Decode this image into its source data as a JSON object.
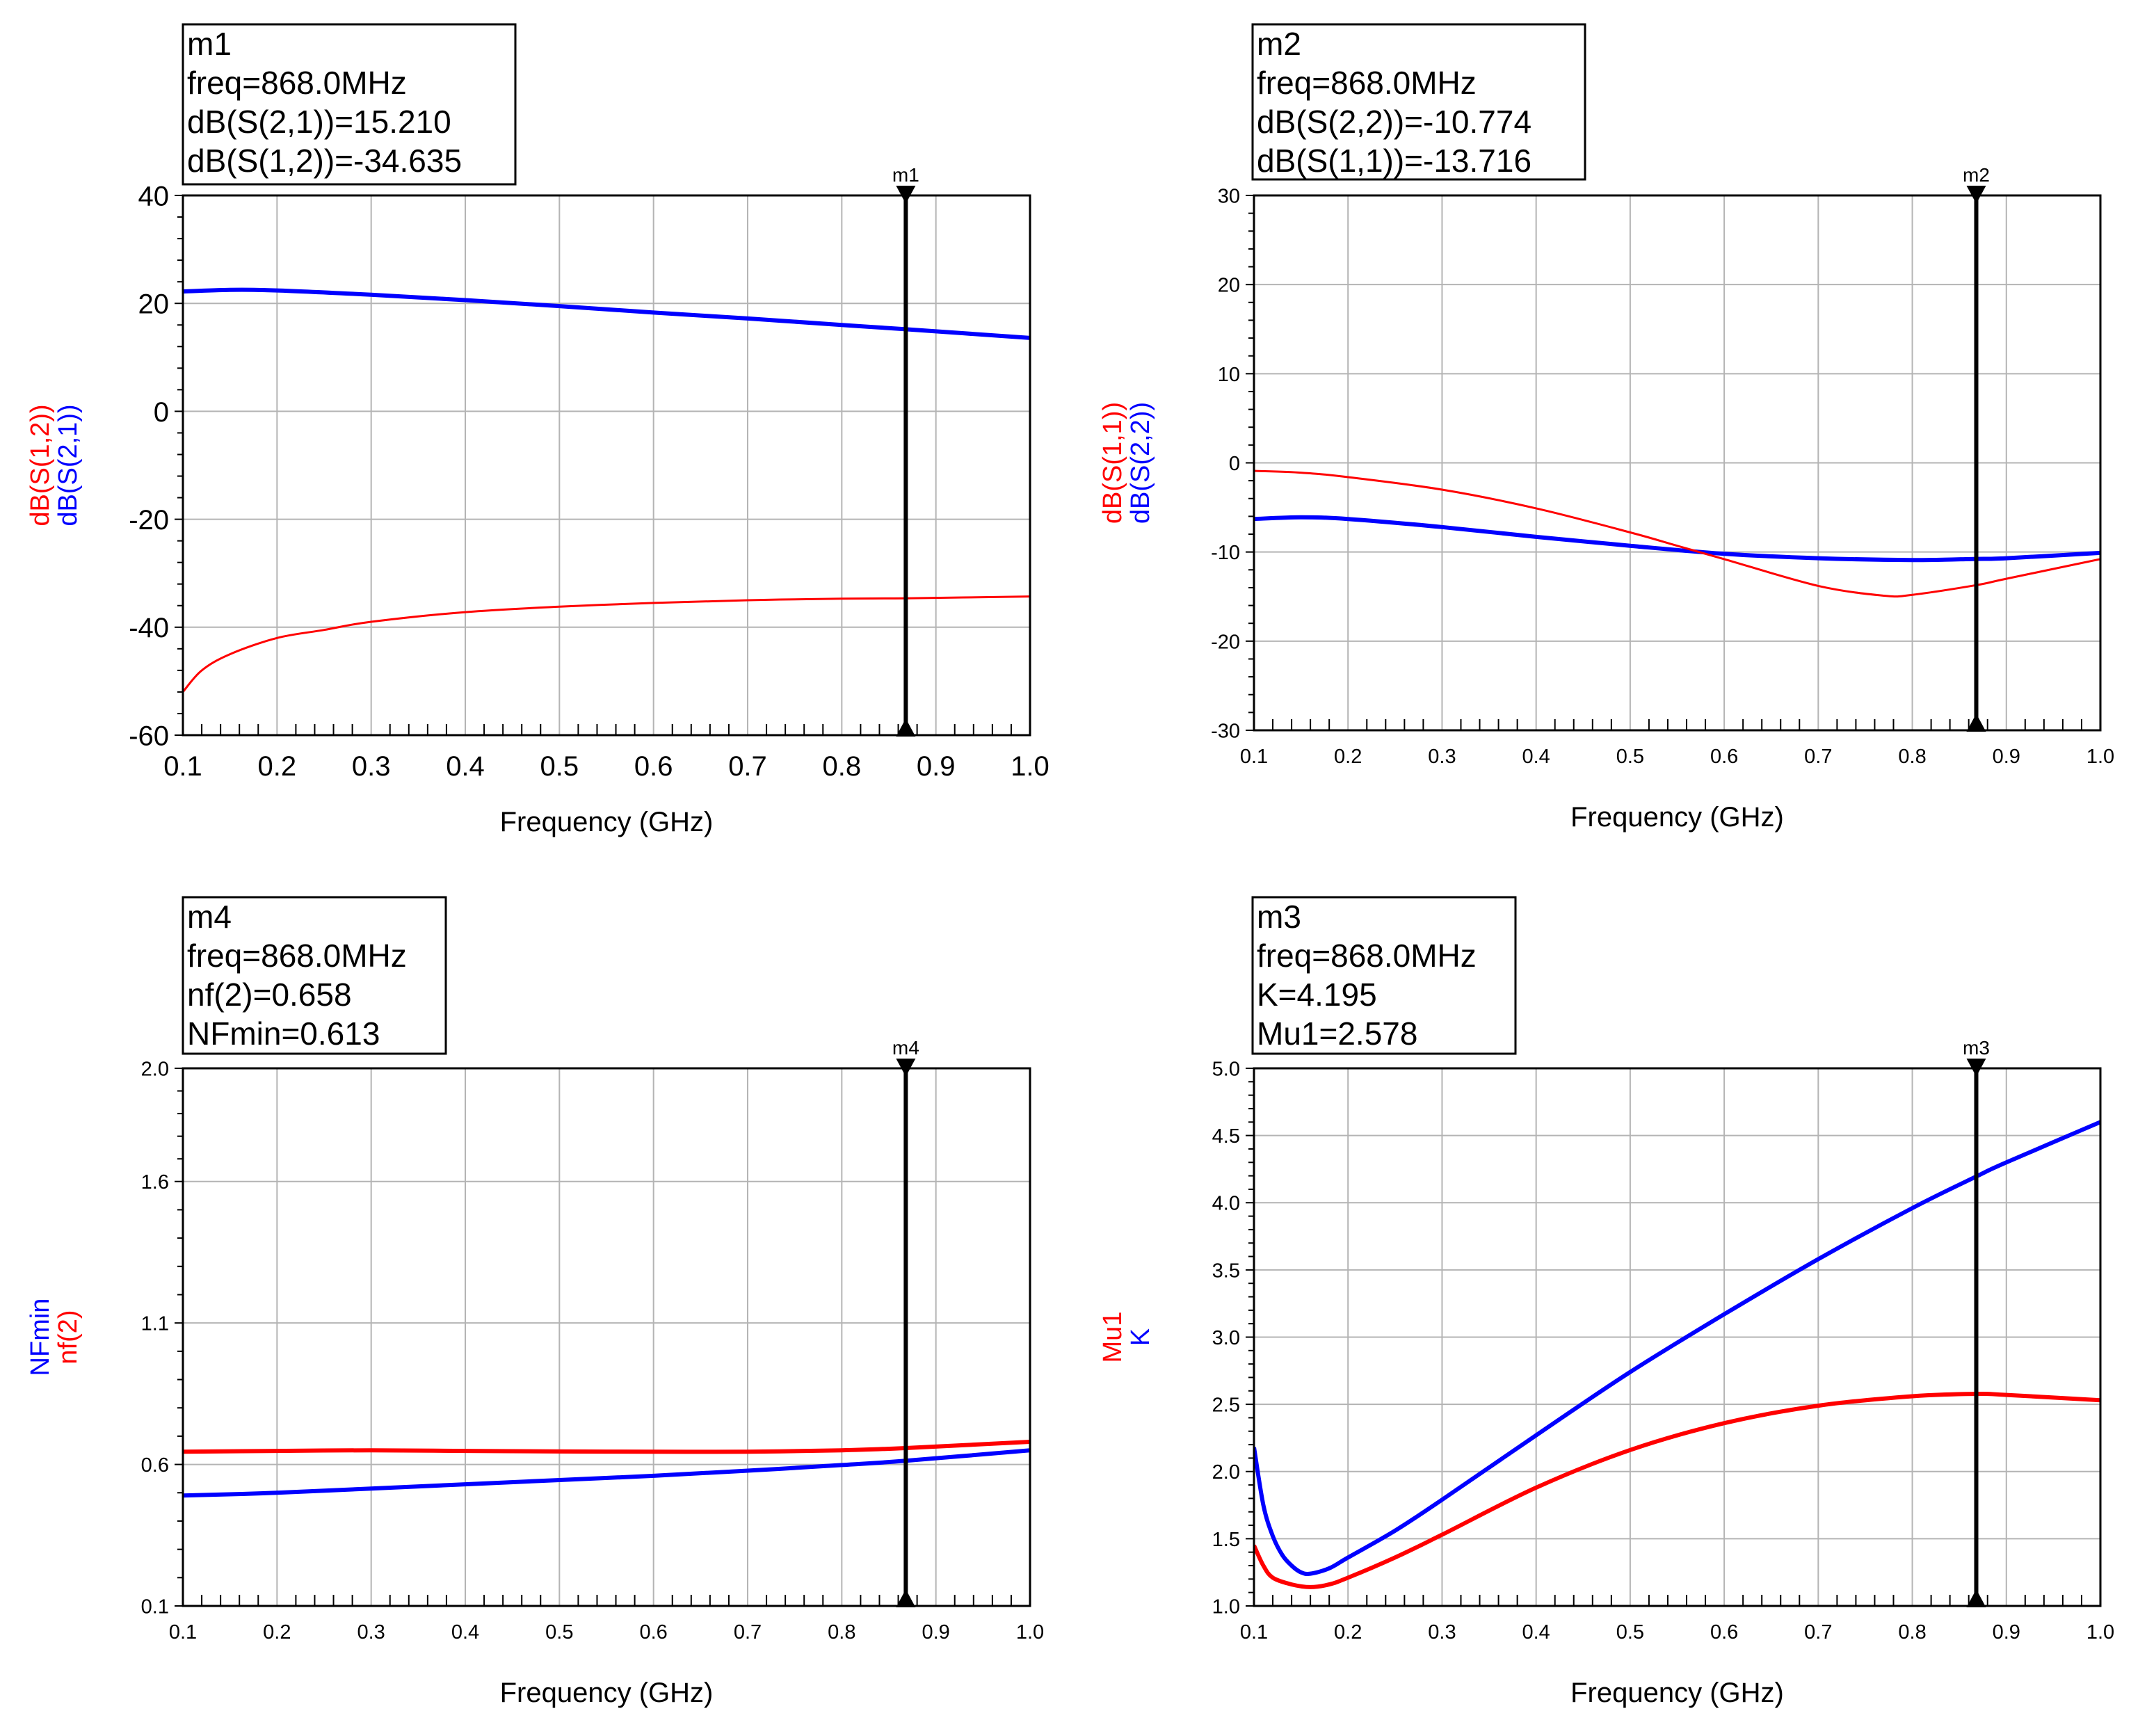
{
  "colors": {
    "red": "#ff0000",
    "blue": "#0000ff",
    "grid": "#b4b4b4",
    "black": "#000000"
  },
  "chart_data": [
    {
      "type": "line",
      "xlabel": "Frequency (GHz)",
      "ylabels": [
        {
          "text": "dB(S(1,2))",
          "color": "#ff0000"
        },
        {
          "text": "dB(S(2,1))",
          "color": "#0000ff"
        }
      ],
      "xlim": [
        0.1,
        1.0
      ],
      "ylim": [
        -60,
        40
      ],
      "xticks": [
        0.1,
        0.2,
        0.3,
        0.4,
        0.5,
        0.6,
        0.7,
        0.8,
        0.9,
        1.0
      ],
      "xtick_labels": [
        "0.1",
        "0.2",
        "0.3",
        "0.4",
        "0.5",
        "0.6",
        "0.7",
        "0.8",
        "0.9",
        "1.0"
      ],
      "yticks": [
        -60,
        -40,
        -20,
        0,
        20,
        40
      ],
      "ytick_labels": [
        "-60",
        "-40",
        "-20",
        "0",
        "20",
        "40"
      ],
      "marker": {
        "name": "m1",
        "x": 0.868,
        "lines": [
          "m1",
          "freq=868.0MHz",
          "dB(S(2,1))=15.210",
          "dB(S(1,2))=-34.635"
        ]
      },
      "series": [
        {
          "name": "dB(S(2,1))",
          "color": "#0000ff",
          "weight": "thick",
          "x": [
            0.1,
            0.15,
            0.2,
            0.3,
            0.4,
            0.5,
            0.6,
            0.7,
            0.8,
            0.868,
            1.0
          ],
          "y": [
            22.2,
            22.5,
            22.4,
            21.6,
            20.6,
            19.5,
            18.3,
            17.2,
            16.0,
            15.21,
            13.6
          ]
        },
        {
          "name": "dB(S(1,2))",
          "color": "#ff0000",
          "weight": "thin",
          "x": [
            0.1,
            0.12,
            0.15,
            0.2,
            0.25,
            0.3,
            0.4,
            0.5,
            0.6,
            0.7,
            0.8,
            0.868,
            1.0
          ],
          "y": [
            -52.0,
            -48.0,
            -45.0,
            -42.0,
            -40.5,
            -39.0,
            -37.2,
            -36.2,
            -35.5,
            -35.0,
            -34.7,
            -34.635,
            -34.3
          ]
        }
      ]
    },
    {
      "type": "line",
      "xlabel": "Frequency (GHz)",
      "ylabels": [
        {
          "text": "dB(S(1,1))",
          "color": "#ff0000"
        },
        {
          "text": "dB(S(2,2))",
          "color": "#0000ff"
        }
      ],
      "xlim": [
        0.1,
        1.0
      ],
      "ylim": [
        -30,
        30
      ],
      "xticks": [
        0.1,
        0.2,
        0.3,
        0.4,
        0.5,
        0.6,
        0.7,
        0.8,
        0.9,
        1.0
      ],
      "xtick_labels": [
        "0.1",
        "0.2",
        "0.3",
        "0.4",
        "0.5",
        "0.6",
        "0.7",
        "0.8",
        "0.9",
        "1.0"
      ],
      "yticks": [
        -30,
        -20,
        -10,
        0,
        10,
        20,
        30
      ],
      "ytick_labels": [
        "-30",
        "-20",
        "-10",
        "0",
        "10",
        "20",
        "30"
      ],
      "marker": {
        "name": "m2",
        "x": 0.868,
        "lines": [
          "m2",
          "freq=868.0MHz",
          "dB(S(2,2))=-10.774",
          "dB(S(1,1))=-13.716"
        ]
      },
      "series": [
        {
          "name": "dB(S(2,2))",
          "color": "#0000ff",
          "weight": "thick",
          "x": [
            0.1,
            0.15,
            0.2,
            0.3,
            0.4,
            0.5,
            0.6,
            0.7,
            0.8,
            0.868,
            0.9,
            1.0
          ],
          "y": [
            -6.3,
            -6.1,
            -6.3,
            -7.2,
            -8.3,
            -9.3,
            -10.2,
            -10.7,
            -10.9,
            -10.774,
            -10.7,
            -10.1
          ]
        },
        {
          "name": "dB(S(1,1))",
          "color": "#ff0000",
          "weight": "thin",
          "x": [
            0.1,
            0.15,
            0.2,
            0.3,
            0.4,
            0.5,
            0.55,
            0.6,
            0.7,
            0.77,
            0.8,
            0.868,
            0.9,
            1.0
          ],
          "y": [
            -0.9,
            -1.1,
            -1.6,
            -3.0,
            -5.1,
            -7.8,
            -9.3,
            -10.8,
            -13.8,
            -14.9,
            -14.8,
            -13.716,
            -13.0,
            -10.8
          ]
        }
      ]
    },
    {
      "type": "line",
      "xlabel": "Frequency (GHz)",
      "ylabels": [
        {
          "text": "NFmin",
          "color": "#0000ff"
        },
        {
          "text": "nf(2)",
          "color": "#ff0000"
        }
      ],
      "xlim": [
        0.1,
        1.0
      ],
      "ylim": [
        0.1,
        2.0
      ],
      "xticks": [
        0.1,
        0.2,
        0.3,
        0.4,
        0.5,
        0.6,
        0.7,
        0.8,
        0.9,
        1.0
      ],
      "xtick_labels": [
        "0.1",
        "0.2",
        "0.3",
        "0.4",
        "0.5",
        "0.6",
        "0.7",
        "0.8",
        "0.9",
        "1.0"
      ],
      "yticks": [
        0.1,
        0.6,
        1.1,
        1.6,
        2.0
      ],
      "ytick_labels": [
        "0.1",
        "0.6",
        "1.1",
        "1.6",
        "2.0"
      ],
      "marker": {
        "name": "m4",
        "x": 0.868,
        "lines": [
          "m4",
          "freq=868.0MHz",
          "nf(2)=0.658",
          "NFmin=0.613"
        ]
      },
      "series": [
        {
          "name": "nf(2)",
          "color": "#ff0000",
          "weight": "thick",
          "x": [
            0.1,
            0.2,
            0.3,
            0.4,
            0.5,
            0.6,
            0.7,
            0.8,
            0.868,
            1.0
          ],
          "y": [
            0.645,
            0.648,
            0.65,
            0.648,
            0.646,
            0.645,
            0.645,
            0.65,
            0.658,
            0.68
          ]
        },
        {
          "name": "NFmin",
          "color": "#0000ff",
          "weight": "thick",
          "x": [
            0.1,
            0.2,
            0.3,
            0.4,
            0.5,
            0.6,
            0.7,
            0.8,
            0.868,
            1.0
          ],
          "y": [
            0.49,
            0.5,
            0.515,
            0.53,
            0.545,
            0.56,
            0.578,
            0.598,
            0.613,
            0.65
          ]
        }
      ]
    },
    {
      "type": "line",
      "xlabel": "Frequency (GHz)",
      "ylabels": [
        {
          "text": "Mu1",
          "color": "#ff0000"
        },
        {
          "text": "K",
          "color": "#0000ff"
        }
      ],
      "xlim": [
        0.1,
        1.0
      ],
      "ylim": [
        1.0,
        5.0
      ],
      "xticks": [
        0.1,
        0.2,
        0.3,
        0.4,
        0.5,
        0.6,
        0.7,
        0.8,
        0.9,
        1.0
      ],
      "xtick_labels": [
        "0.1",
        "0.2",
        "0.3",
        "0.4",
        "0.5",
        "0.6",
        "0.7",
        "0.8",
        "0.9",
        "1.0"
      ],
      "yticks": [
        1.0,
        1.5,
        2.0,
        2.5,
        3.0,
        3.5,
        4.0,
        4.5,
        5.0
      ],
      "ytick_labels": [
        "1.0",
        "1.5",
        "2.0",
        "2.5",
        "3.0",
        "3.5",
        "4.0",
        "4.5",
        "5.0"
      ],
      "marker": {
        "name": "m3",
        "x": 0.868,
        "lines": [
          "m3",
          "freq=868.0MHz",
          "K=4.195",
          "Mu1=2.578"
        ]
      },
      "series": [
        {
          "name": "K",
          "color": "#0000ff",
          "weight": "thick",
          "x": [
            0.1,
            0.11,
            0.12,
            0.13,
            0.14,
            0.15,
            0.16,
            0.18,
            0.2,
            0.25,
            0.3,
            0.4,
            0.5,
            0.6,
            0.7,
            0.8,
            0.868,
            0.9,
            1.0
          ],
          "y": [
            2.18,
            1.75,
            1.52,
            1.38,
            1.3,
            1.25,
            1.24,
            1.28,
            1.36,
            1.56,
            1.79,
            2.27,
            2.74,
            3.17,
            3.58,
            3.96,
            4.195,
            4.3,
            4.6
          ]
        },
        {
          "name": "Mu1",
          "color": "#ff0000",
          "weight": "thick",
          "x": [
            0.1,
            0.11,
            0.12,
            0.14,
            0.16,
            0.18,
            0.2,
            0.25,
            0.3,
            0.4,
            0.5,
            0.6,
            0.7,
            0.8,
            0.868,
            0.9,
            1.0
          ],
          "y": [
            1.45,
            1.3,
            1.21,
            1.16,
            1.14,
            1.16,
            1.21,
            1.36,
            1.53,
            1.88,
            2.16,
            2.36,
            2.49,
            2.56,
            2.578,
            2.57,
            2.53
          ]
        }
      ]
    }
  ]
}
